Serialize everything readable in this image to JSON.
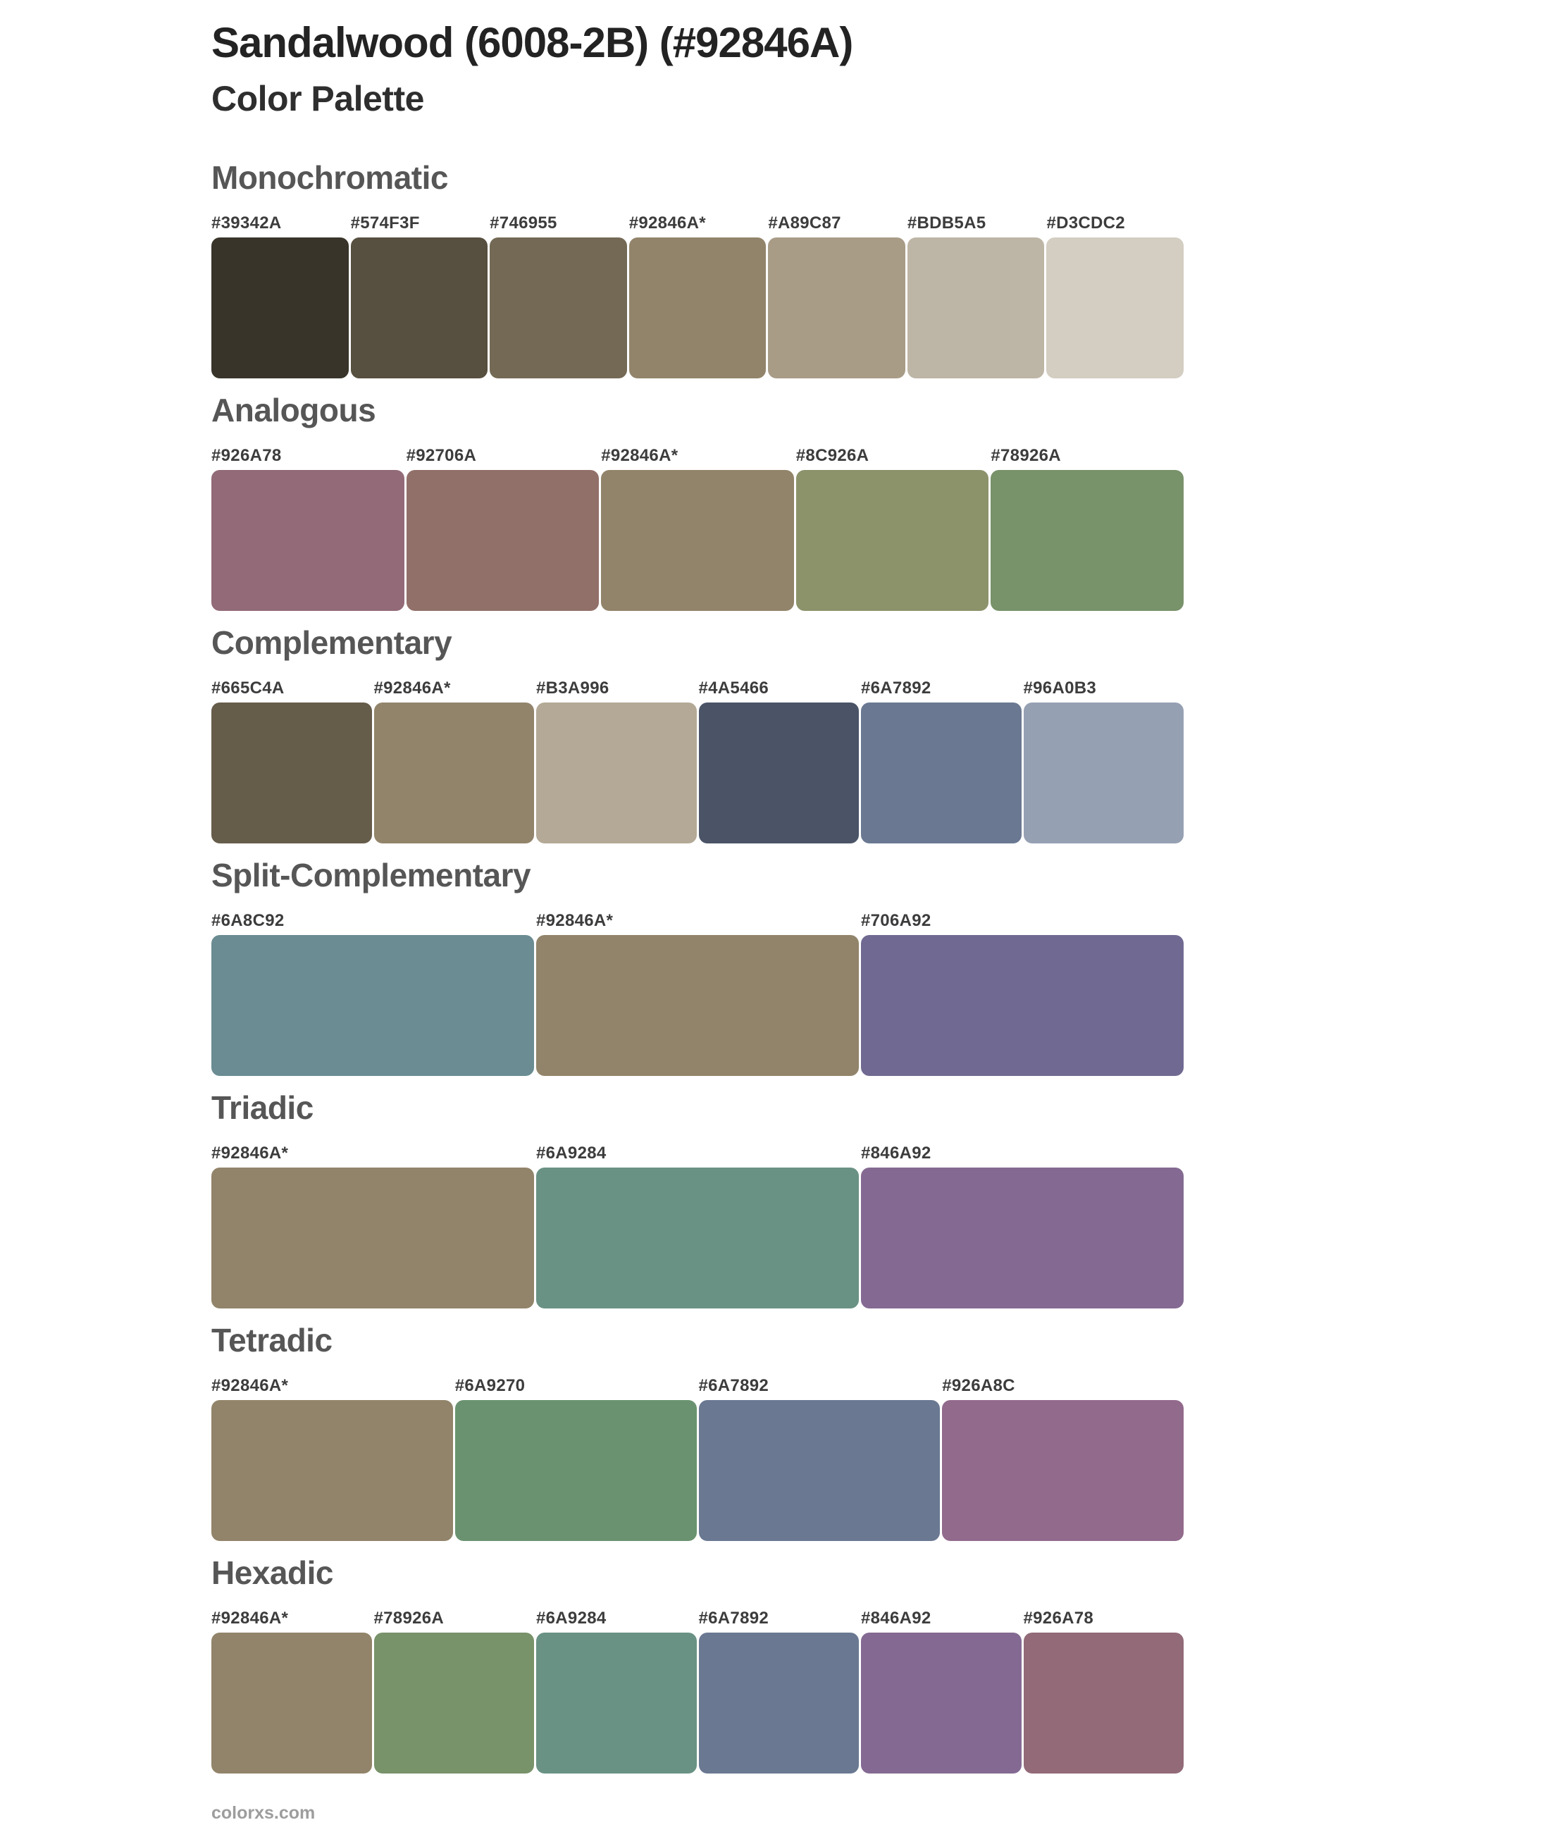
{
  "page": {
    "title": "Sandalwood (6008-2B) (#92846A)",
    "subtitle": "Color Palette",
    "footer": "colorxs.com",
    "base_color": "#92846A",
    "background": "#ffffff",
    "title_color": "#232323",
    "section_heading_color": "#565656",
    "label_color": "#3c3c3c",
    "footer_color": "#9d9d9d"
  },
  "sections": [
    {
      "name": "Monochromatic",
      "swatches": [
        {
          "label": "#39342A",
          "color": "#39342A"
        },
        {
          "label": "#574F3F",
          "color": "#574F3F"
        },
        {
          "label": "#746955",
          "color": "#746955"
        },
        {
          "label": "#92846A*",
          "color": "#92846A"
        },
        {
          "label": "#A89C87",
          "color": "#A89C87"
        },
        {
          "label": "#BDB5A5",
          "color": "#BDB5A5"
        },
        {
          "label": "#D3CDC2",
          "color": "#D3CDC2"
        }
      ]
    },
    {
      "name": "Analogous",
      "swatches": [
        {
          "label": "#926A78",
          "color": "#926A78"
        },
        {
          "label": "#92706A",
          "color": "#92706A"
        },
        {
          "label": "#92846A*",
          "color": "#92846A"
        },
        {
          "label": "#8C926A",
          "color": "#8C926A"
        },
        {
          "label": "#78926A",
          "color": "#78926A"
        }
      ]
    },
    {
      "name": "Complementary",
      "swatches": [
        {
          "label": "#665C4A",
          "color": "#665C4A"
        },
        {
          "label": "#92846A*",
          "color": "#92846A"
        },
        {
          "label": "#B3A996",
          "color": "#B3A996"
        },
        {
          "label": "#4A5466",
          "color": "#4A5466"
        },
        {
          "label": "#6A7892",
          "color": "#6A7892"
        },
        {
          "label": "#96A0B3",
          "color": "#96A0B3"
        }
      ]
    },
    {
      "name": "Split-Complementary",
      "swatches": [
        {
          "label": "#6A8C92",
          "color": "#6A8C92"
        },
        {
          "label": "#92846A*",
          "color": "#92846A"
        },
        {
          "label": "#706A92",
          "color": "#706A92"
        }
      ]
    },
    {
      "name": "Triadic",
      "swatches": [
        {
          "label": "#92846A*",
          "color": "#92846A"
        },
        {
          "label": "#6A9284",
          "color": "#6A9284"
        },
        {
          "label": "#846A92",
          "color": "#846A92"
        }
      ]
    },
    {
      "name": "Tetradic",
      "swatches": [
        {
          "label": "#92846A*",
          "color": "#92846A"
        },
        {
          "label": "#6A9270",
          "color": "#6A9270"
        },
        {
          "label": "#6A7892",
          "color": "#6A7892"
        },
        {
          "label": "#926A8C",
          "color": "#926A8C"
        }
      ]
    },
    {
      "name": "Hexadic",
      "swatches": [
        {
          "label": "#92846A*",
          "color": "#92846A"
        },
        {
          "label": "#78926A",
          "color": "#78926A"
        },
        {
          "label": "#6A9284",
          "color": "#6A9284"
        },
        {
          "label": "#6A7892",
          "color": "#6A7892"
        },
        {
          "label": "#846A92",
          "color": "#846A92"
        },
        {
          "label": "#926A78",
          "color": "#926A78"
        }
      ]
    }
  ]
}
